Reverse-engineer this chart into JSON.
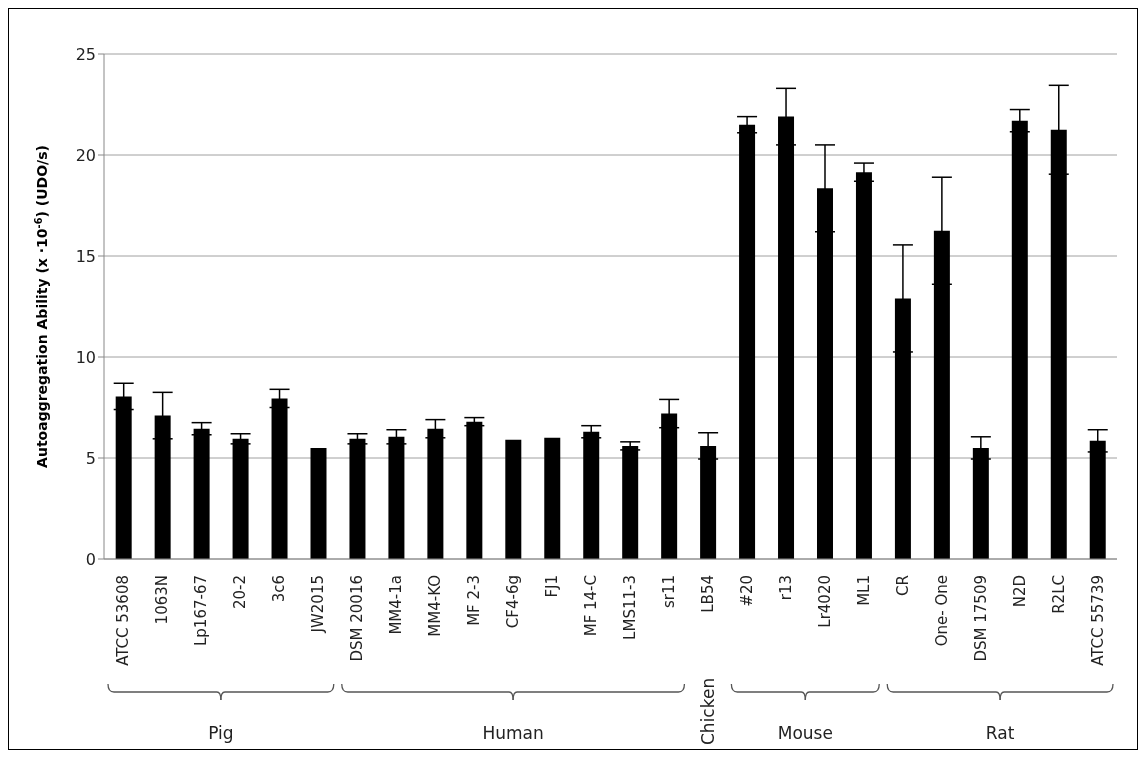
{
  "chart_data": {
    "type": "bar",
    "ylabel": "Autoaggregation Ability (x ·10$^{-6}$) (UDO/s)",
    "categories": [
      "ATCC 53608",
      "1063N",
      "Lp167-67",
      "20-2",
      "3c6",
      "JW2015",
      "DSM 20016",
      "MM4-1a",
      "MM4-KO",
      "MF 2-3",
      "CF4-6g",
      "FJ1",
      "MF 14-C",
      "LMS11-3",
      "sr11",
      "LB54",
      "#20",
      "r13",
      "Lr4020",
      "ML1",
      "CR",
      "One- One",
      "DSM 17509",
      "N2D",
      "R2LC",
      "ATCC 55739"
    ],
    "values": [
      8.05,
      7.1,
      6.45,
      5.95,
      7.95,
      5.5,
      5.95,
      6.05,
      6.45,
      6.8,
      5.9,
      6.0,
      6.3,
      5.6,
      7.2,
      5.6,
      21.5,
      21.9,
      18.35,
      19.15,
      12.9,
      16.25,
      5.5,
      21.7,
      21.25,
      5.85
    ],
    "errors": [
      0.65,
      1.15,
      0.3,
      0.25,
      0.45,
      null,
      0.25,
      0.35,
      0.45,
      0.2,
      null,
      null,
      0.3,
      0.2,
      0.7,
      0.65,
      0.4,
      1.4,
      2.15,
      0.45,
      2.65,
      2.65,
      0.55,
      0.55,
      2.2,
      0.55
    ],
    "color": "#000000",
    "ylim": [
      0,
      25
    ],
    "yticks": [
      0,
      5,
      10,
      15,
      20,
      25
    ],
    "grid": "y",
    "annotations": [
      "Pig",
      "Human",
      "Chicken",
      "Mouse",
      "Rat"
    ]
  }
}
